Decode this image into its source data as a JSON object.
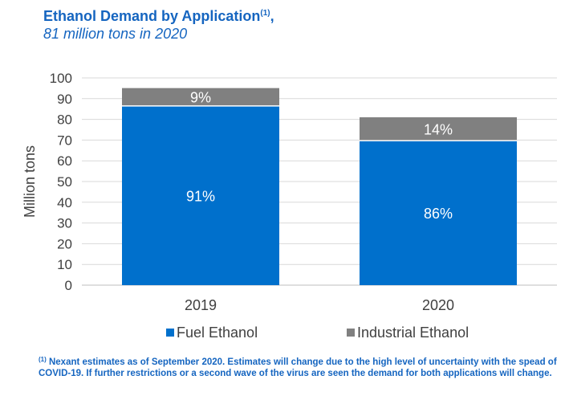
{
  "title": {
    "main": "Ethanol Demand by Application",
    "superscript": "(1)",
    "suffix": ",",
    "subtitle": "81 million tons in 2020"
  },
  "chart_data": {
    "type": "bar",
    "stacked": true,
    "categories": [
      "2019",
      "2020"
    ],
    "series": [
      {
        "name": "Fuel Ethanol",
        "color": "#0070cc",
        "values": [
          86.5,
          69.7
        ],
        "labels": [
          "91%",
          "86%"
        ]
      },
      {
        "name": "Industrial Ethanol",
        "color": "#808080",
        "values": [
          8.6,
          11.3
        ],
        "labels": [
          "9%",
          "14%"
        ]
      }
    ],
    "ylabel": "Million tons",
    "xlabel": "",
    "ylim": [
      0,
      100
    ],
    "yticks": [
      0,
      10,
      20,
      30,
      40,
      50,
      60,
      70,
      80,
      90,
      100
    ],
    "grid": true,
    "legend": "bottom-center"
  },
  "footnote": {
    "marker": "(1)",
    "text": "Nexant estimates as of September 2020. Estimates will change due to the high level of uncertainty with the spead of COVID-19. If further restrictions or a second wave of the virus are seen the demand for both applications will change."
  }
}
